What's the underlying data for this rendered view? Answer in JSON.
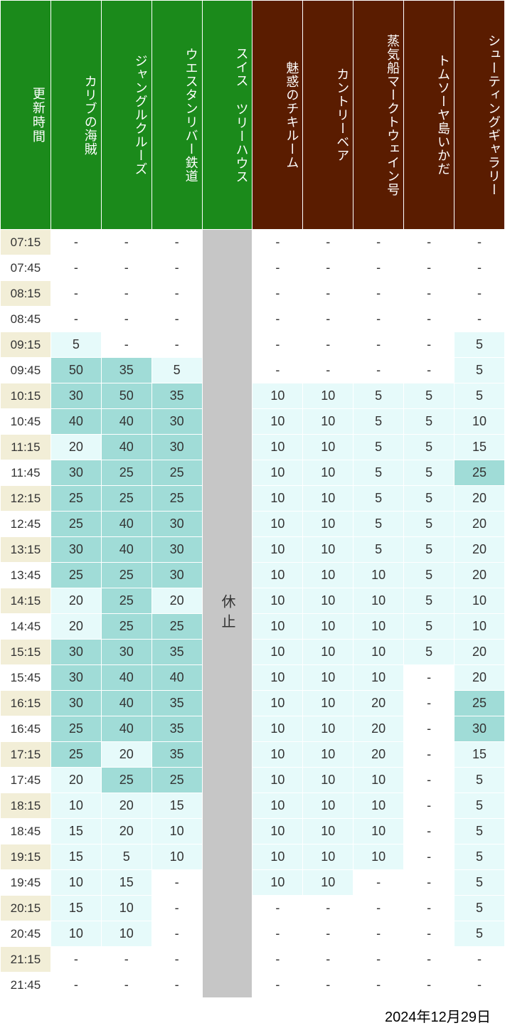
{
  "colors": {
    "header_green": "#1b8a1b",
    "header_brown": "#5a1c00",
    "time_col_bg_odd": "#f2eed7",
    "time_col_bg_even": "#ffffff",
    "cell_white": "#ffffff",
    "cell_pale": "#e6fafa",
    "cell_light": "#bce5e5",
    "cell_medium": "#a0dcd7",
    "closed_bg": "#c6c6c6",
    "text_dark": "#333333"
  },
  "headers": {
    "time": "更新時間",
    "attractions": [
      {
        "label": "カリブの海賊",
        "color_key": "header_green"
      },
      {
        "label": "ジャングルクルーズ",
        "color_key": "header_green"
      },
      {
        "label": "ウエスタンリバー鉄道",
        "color_key": "header_green"
      },
      {
        "label": "スイス ツリーハウス",
        "color_key": "header_green"
      },
      {
        "label": "魅惑のチキルーム",
        "color_key": "header_brown"
      },
      {
        "label": "カントリーベア",
        "color_key": "header_brown"
      },
      {
        "label": "蒸気船マークトウェイン号",
        "color_key": "header_brown"
      },
      {
        "label": "トムソーヤ島いかだ",
        "color_key": "header_brown"
      },
      {
        "label": "シューティングギャラリー",
        "color_key": "header_brown"
      }
    ]
  },
  "closed_column_index": 3,
  "closed_label": "休止",
  "thresholds": {
    "pale_max": 20,
    "light_max": 24
  },
  "times": [
    "07:15",
    "07:45",
    "08:15",
    "08:45",
    "09:15",
    "09:45",
    "10:15",
    "10:45",
    "11:15",
    "11:45",
    "12:15",
    "12:45",
    "13:15",
    "13:45",
    "14:15",
    "14:45",
    "15:15",
    "15:45",
    "16:15",
    "16:45",
    "17:15",
    "17:45",
    "18:15",
    "18:45",
    "19:15",
    "19:45",
    "20:15",
    "20:45",
    "21:15",
    "21:45"
  ],
  "rows": [
    [
      "-",
      "-",
      "-",
      null,
      "-",
      "-",
      "-",
      "-",
      "-"
    ],
    [
      "-",
      "-",
      "-",
      null,
      "-",
      "-",
      "-",
      "-",
      "-"
    ],
    [
      "-",
      "-",
      "-",
      null,
      "-",
      "-",
      "-",
      "-",
      "-"
    ],
    [
      "-",
      "-",
      "-",
      null,
      "-",
      "-",
      "-",
      "-",
      "-"
    ],
    [
      5,
      "-",
      "-",
      null,
      "-",
      "-",
      "-",
      "-",
      5
    ],
    [
      50,
      35,
      5,
      null,
      "-",
      "-",
      "-",
      "-",
      5
    ],
    [
      30,
      50,
      35,
      null,
      10,
      10,
      5,
      5,
      5
    ],
    [
      40,
      40,
      30,
      null,
      10,
      10,
      5,
      5,
      10
    ],
    [
      20,
      40,
      30,
      null,
      10,
      10,
      5,
      5,
      15
    ],
    [
      30,
      25,
      25,
      null,
      10,
      10,
      5,
      5,
      25
    ],
    [
      25,
      25,
      25,
      null,
      10,
      10,
      5,
      5,
      20
    ],
    [
      25,
      40,
      30,
      null,
      10,
      10,
      5,
      5,
      20
    ],
    [
      30,
      40,
      30,
      null,
      10,
      10,
      5,
      5,
      20
    ],
    [
      25,
      25,
      30,
      null,
      10,
      10,
      10,
      5,
      20
    ],
    [
      20,
      25,
      20,
      null,
      10,
      10,
      10,
      5,
      10
    ],
    [
      20,
      25,
      25,
      null,
      10,
      10,
      10,
      5,
      10
    ],
    [
      30,
      30,
      35,
      null,
      10,
      10,
      10,
      5,
      20
    ],
    [
      30,
      40,
      40,
      null,
      10,
      10,
      10,
      "-",
      20
    ],
    [
      30,
      40,
      35,
      null,
      10,
      10,
      20,
      "-",
      25
    ],
    [
      25,
      40,
      35,
      null,
      10,
      10,
      20,
      "-",
      30
    ],
    [
      25,
      20,
      35,
      null,
      10,
      10,
      20,
      "-",
      15
    ],
    [
      20,
      25,
      25,
      null,
      10,
      10,
      10,
      "-",
      5
    ],
    [
      10,
      20,
      15,
      null,
      10,
      10,
      10,
      "-",
      5
    ],
    [
      15,
      20,
      10,
      null,
      10,
      10,
      10,
      "-",
      5
    ],
    [
      15,
      5,
      10,
      null,
      10,
      10,
      10,
      "-",
      5
    ],
    [
      10,
      15,
      "-",
      null,
      10,
      10,
      "-",
      "-",
      5
    ],
    [
      15,
      10,
      "-",
      null,
      "-",
      "-",
      "-",
      "-",
      5
    ],
    [
      10,
      10,
      "-",
      null,
      "-",
      "-",
      "-",
      "-",
      5
    ],
    [
      "-",
      "-",
      "-",
      null,
      "-",
      "-",
      "-",
      "-",
      "-"
    ],
    [
      "-",
      "-",
      "-",
      null,
      "-",
      "-",
      "-",
      "-",
      "-"
    ]
  ],
  "footer_date": "2024年12月29日"
}
